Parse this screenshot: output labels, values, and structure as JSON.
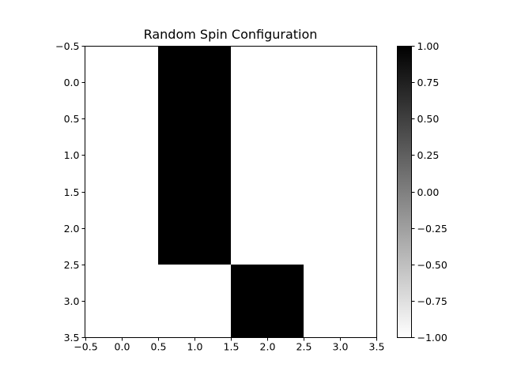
{
  "chart_data": {
    "type": "heatmap",
    "title": "Random Spin Configuration",
    "xlabel": "",
    "ylabel": "",
    "rows": 4,
    "cols": 4,
    "values": [
      [
        -1,
        1,
        -1,
        -1
      ],
      [
        -1,
        1,
        -1,
        -1
      ],
      [
        -1,
        1,
        -1,
        -1
      ],
      [
        -1,
        -1,
        1,
        -1
      ]
    ],
    "xlim": [
      -0.5,
      3.5
    ],
    "ylim": [
      3.5,
      -0.5
    ],
    "x_ticks": [
      -0.5,
      0.0,
      0.5,
      1.0,
      1.5,
      2.0,
      2.5,
      3.0,
      3.5
    ],
    "x_tick_labels": [
      "−0.5",
      "0.0",
      "0.5",
      "1.0",
      "1.5",
      "2.0",
      "2.5",
      "3.0",
      "3.5"
    ],
    "y_ticks": [
      -0.5,
      0.0,
      0.5,
      1.0,
      1.5,
      2.0,
      2.5,
      3.0,
      3.5
    ],
    "y_tick_labels": [
      "−0.5",
      "0.0",
      "0.5",
      "1.0",
      "1.5",
      "2.0",
      "2.5",
      "3.0",
      "3.5"
    ],
    "colorbar": {
      "cmap": "gray_r",
      "vmin": -1.0,
      "vmax": 1.0,
      "ticks": [
        1.0,
        0.75,
        0.5,
        0.25,
        0.0,
        -0.25,
        -0.5,
        -0.75,
        -1.0
      ],
      "tick_labels": [
        "1.00",
        "0.75",
        "0.50",
        "0.25",
        "0.00",
        "−0.25",
        "−0.50",
        "−0.75",
        "−1.00"
      ],
      "color_at_min": "#ffffff",
      "color_at_max": "#000000"
    },
    "grid": false
  }
}
